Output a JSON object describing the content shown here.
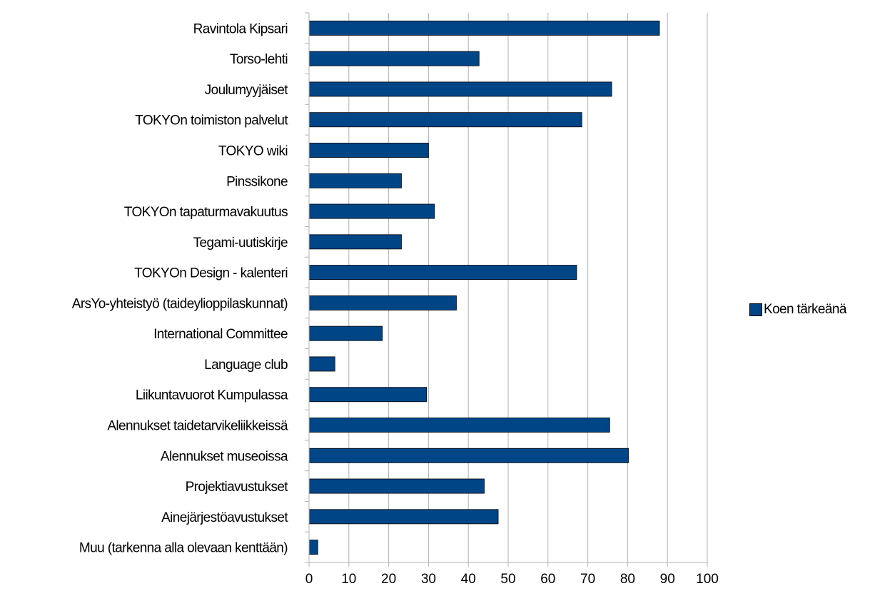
{
  "chart_data": {
    "type": "bar",
    "orientation": "horizontal",
    "title": "",
    "xlabel": "",
    "ylabel": "",
    "xlim": [
      0,
      100
    ],
    "xticks": [
      0,
      10,
      20,
      30,
      40,
      50,
      60,
      70,
      80,
      90,
      100
    ],
    "grid": true,
    "legend_position": "right",
    "categories": [
      "Ravintola Kipsari",
      "Torso-lehti",
      "Joulumyyjäiset",
      "TOKYOn toimiston palvelut",
      "TOKYO wiki",
      "Pinssikone",
      "TOKYOn tapaturmavakuutus",
      "Tegami-uutiskirje",
      "TOKYOn Design - kalenteri",
      "ArsYo-yhteistyö (taideylioppilaskunnat)",
      "International Committee",
      "Language club",
      "Liikuntavuorot Kumpulassa",
      "Alennukset taidetarvikeliikkeissä",
      "Alennukset museoissa",
      "Projektiavustukset",
      "Ainejärjestöavustukset",
      "Muu (tarkenna alla olevaan kenttään)"
    ],
    "series": [
      {
        "name": "Koen tärkeänä",
        "color": "#004586",
        "values": [
          88,
          42.7,
          76,
          68.5,
          30,
          23.2,
          31.5,
          23.2,
          67.2,
          37,
          18.4,
          6.5,
          29.5,
          75.5,
          80.2,
          44,
          47.5,
          2.2
        ]
      }
    ]
  }
}
